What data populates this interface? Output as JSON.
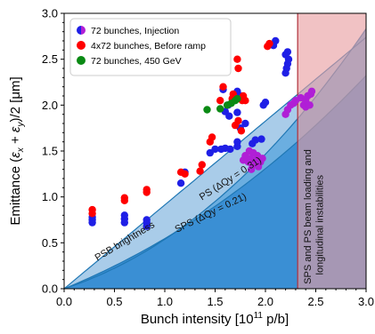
{
  "chart_data": {
    "type": "scatter",
    "xlabel": "Bunch intensity   [10$^{11}$ p/b]",
    "xlabel_parts": {
      "main": "Bunch intensity   [10",
      "sup": "11",
      "tail": " p/b]"
    },
    "ylabel": "Emittance  (εx + εy)/2   [μm]",
    "ylabel_parts": {
      "pre": "Emittance  (",
      "e1": "ε",
      "s1": "x",
      "plus": " + ",
      "e2": "ε",
      "s2": "y",
      "post": ")/2   [μm]"
    },
    "xlim": [
      0.0,
      3.0
    ],
    "ylim": [
      0.0,
      3.0
    ],
    "xticks": [
      "0.0",
      "0.5",
      "1.0",
      "1.5",
      "2.0",
      "2.5",
      "3.0"
    ],
    "yticks": [
      "0.0",
      "0.5",
      "1.0",
      "1.5",
      "2.0",
      "2.5",
      "3.0"
    ],
    "legend_position": "top-left",
    "series": [
      {
        "name": "72 bunches, Injection",
        "color": "#1f1fe6",
        "color2": "#b01fd6",
        "points": [
          [
            0.28,
            0.72
          ],
          [
            0.28,
            0.75
          ],
          [
            0.28,
            0.78
          ],
          [
            0.6,
            0.72
          ],
          [
            0.6,
            0.76
          ],
          [
            0.6,
            0.8
          ],
          [
            0.82,
            0.68
          ],
          [
            0.82,
            0.72
          ],
          [
            0.82,
            0.75
          ],
          [
            1.16,
            1.15
          ],
          [
            1.2,
            1.27
          ],
          [
            1.45,
            1.48
          ],
          [
            1.5,
            1.52
          ],
          [
            1.56,
            1.52
          ],
          [
            1.6,
            1.53
          ],
          [
            1.65,
            1.52
          ],
          [
            1.72,
            1.55
          ],
          [
            1.6,
            1.93
          ],
          [
            1.63,
            2.0
          ],
          [
            1.68,
            2.05
          ],
          [
            1.75,
            2.1
          ],
          [
            1.72,
            2.15
          ],
          [
            1.58,
            2.17
          ],
          [
            1.64,
            1.88
          ],
          [
            1.72,
            1.92
          ],
          [
            1.72,
            1.6
          ],
          [
            1.75,
            1.75
          ],
          [
            1.8,
            1.8
          ],
          [
            1.87,
            1.58
          ],
          [
            1.9,
            1.62
          ],
          [
            1.96,
            1.63
          ],
          [
            1.98,
            2.0
          ],
          [
            2.0,
            2.03
          ],
          [
            2.08,
            2.65
          ],
          [
            2.1,
            2.7
          ],
          [
            2.2,
            2.35
          ],
          [
            2.21,
            2.4
          ],
          [
            2.22,
            2.45
          ],
          [
            2.23,
            2.5
          ],
          [
            2.2,
            2.55
          ],
          [
            2.22,
            2.58
          ]
        ]
      },
      {
        "name": "4x72 bunches, Before ramp",
        "color": "#ff0000",
        "points": [
          [
            0.28,
            0.82
          ],
          [
            0.28,
            0.86
          ],
          [
            0.6,
            0.96
          ],
          [
            0.6,
            0.99
          ],
          [
            0.82,
            1.05
          ],
          [
            0.82,
            1.08
          ],
          [
            1.16,
            1.27
          ],
          [
            1.2,
            1.25
          ],
          [
            1.35,
            1.28
          ],
          [
            1.37,
            1.35
          ],
          [
            1.45,
            1.6
          ],
          [
            1.47,
            1.65
          ],
          [
            1.55,
            2.05
          ],
          [
            1.58,
            2.2
          ],
          [
            1.67,
            2.07
          ],
          [
            1.68,
            2.12
          ],
          [
            1.7,
            1.78
          ],
          [
            1.73,
            1.83
          ],
          [
            1.76,
            1.72
          ],
          [
            1.78,
            2.1
          ],
          [
            1.8,
            2.05
          ],
          [
            1.77,
            2.05
          ],
          [
            1.72,
            2.5
          ],
          [
            1.73,
            2.4
          ],
          [
            2.02,
            2.64
          ],
          [
            2.04,
            2.67
          ]
        ]
      },
      {
        "name": "72 bunches, 450 GeV",
        "color": "#0a8a14",
        "points": [
          [
            1.42,
            1.95
          ],
          [
            1.55,
            1.96
          ],
          [
            1.62,
            2.0
          ],
          [
            1.66,
            2.02
          ],
          [
            1.7,
            2.05
          ],
          [
            1.72,
            2.07
          ]
        ]
      },
      {
        "name": "",
        "color": "#b01fd6",
        "points": [
          [
            1.78,
            1.4
          ],
          [
            1.8,
            1.45
          ],
          [
            1.83,
            1.38
          ],
          [
            1.85,
            1.42
          ],
          [
            1.87,
            1.35
          ],
          [
            1.9,
            1.4
          ],
          [
            1.92,
            1.45
          ],
          [
            1.95,
            1.38
          ],
          [
            1.97,
            1.42
          ],
          [
            1.84,
            1.5
          ],
          [
            1.88,
            1.48
          ],
          [
            1.93,
            1.33
          ],
          [
            1.86,
            1.3
          ],
          [
            2.2,
            1.9
          ],
          [
            2.22,
            1.95
          ],
          [
            2.25,
            2.0
          ],
          [
            2.28,
            2.02
          ],
          [
            2.3,
            2.05
          ],
          [
            2.35,
            2.08
          ],
          [
            2.38,
            2.0
          ],
          [
            2.4,
            2.05
          ],
          [
            2.42,
            2.1
          ],
          [
            2.45,
            2.12
          ],
          [
            2.46,
            2.15
          ],
          [
            2.4,
            1.98
          ],
          [
            2.44,
            2.0
          ]
        ]
      }
    ],
    "regions": [
      {
        "label": "PSB brightness"
      },
      {
        "label": "PS (ΔQy = 0.31)"
      },
      {
        "label": "SPS (ΔQy = 0.21)"
      },
      {
        "label_line1": "SPS and PS beam loading and",
        "label_line2": "longitudinal instabilities",
        "x_start": 2.32
      }
    ],
    "colors": {
      "psb_fill": "#a9cce9",
      "ps_fill": "#6baee0",
      "sps_fill": "#3a8fd4",
      "instab_fill": "#e89ca0",
      "boundary": "#1f77b4",
      "instab_edge": "#b0303a"
    }
  }
}
